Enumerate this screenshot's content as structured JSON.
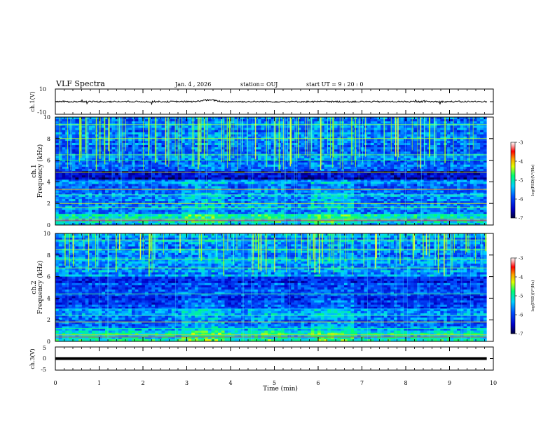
{
  "header": {
    "title": "VLF Spectra",
    "date": "Jan. 4 , 2026",
    "station": "station= OUJ",
    "start": "start UT =  9 : 20 : 0"
  },
  "panels": {
    "ch1_waveform": {
      "ylabel": "ch.1(V)",
      "yticks": [
        "10",
        "-10"
      ],
      "ylim": [
        -10,
        10
      ]
    },
    "ch1_spectrogram": {
      "ylabel_top": "ch.1",
      "ylabel": "Frequency (kHz)",
      "yticks": [
        "0",
        "2",
        "4",
        "6",
        "8",
        "10"
      ],
      "ylim": [
        0,
        10
      ]
    },
    "ch2_spectrogram": {
      "ylabel_top": "ch.2",
      "ylabel": "Frequency (kHz)",
      "yticks": [
        "0",
        "2",
        "4",
        "6",
        "8",
        "10"
      ],
      "ylim": [
        0,
        10
      ]
    },
    "ch3_waveform": {
      "ylabel": "ch.3(V)",
      "yticks": [
        "5",
        "0",
        "-5"
      ],
      "ylim": [
        -5,
        5
      ]
    }
  },
  "colorbars": [
    {
      "label": "log(PSD)(V²/Hz)",
      "ticks": [
        "-3",
        "-4",
        "-5",
        "-6",
        "-7"
      ],
      "range": [
        -7,
        -3
      ]
    },
    {
      "label": "log(PSD)(V²/Hz)",
      "ticks": [
        "-3",
        "-4",
        "-5",
        "-6",
        "-7"
      ],
      "range": [
        -7,
        -3
      ]
    }
  ],
  "chart_data": {
    "type": "heatmap",
    "xlabel": "Time (min)",
    "xticks": [
      "0",
      "1",
      "2",
      "3",
      "4",
      "5",
      "6",
      "7",
      "8",
      "9",
      "10"
    ],
    "xlim": [
      0,
      10
    ],
    "data_end_min": 9.85,
    "ch1_mean_V": 0,
    "ch3_level_V": 0,
    "colorscale": [
      "#000050",
      "#0000ff",
      "#00d0ff",
      "#00ff80",
      "#ffff00",
      "#ff0000",
      "#ffffff"
    ],
    "colorbar_top_color": "#ffffff",
    "colorbar_bottom_color": "#000060"
  }
}
